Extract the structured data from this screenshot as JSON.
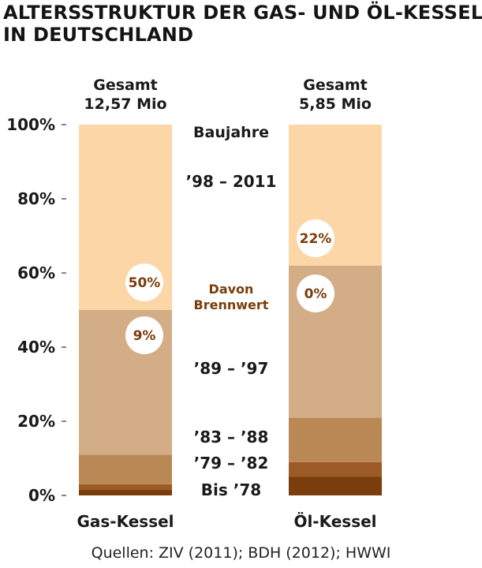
{
  "title": [
    "ALTERSSTRUKTUR DER GAS- UND ÖL-KESSEL",
    "IN DEUTSCHLAND"
  ],
  "source": "Quellen: ZIV (2011); BDH (2012); HWWI",
  "colors": {
    "bis78": "#7a3d0c",
    "79_82": "#9c5a26",
    "83_88": "#b98855",
    "89_97": "#d3ad86",
    "98_2011": "#fcd6a6",
    "circle_text": "#7a3d0c",
    "text": "#1a1a1a"
  },
  "chart_data": {
    "type": "bar",
    "stacked": true,
    "ylim": [
      0,
      100
    ],
    "yticks": [
      0,
      20,
      40,
      60,
      80,
      100
    ],
    "ytick_labels": [
      "0%",
      "20%",
      "40%",
      "60%",
      "80%",
      "100%"
    ],
    "center_heading": "Baujahre",
    "brennwert_label": [
      "Davon",
      "Brennwert"
    ],
    "categories": [
      "Gas-Kessel",
      "Öl-Kessel"
    ],
    "totals": [
      [
        "Gesamt",
        "12,57 Mio"
      ],
      [
        "Gesamt",
        "5,85 Mio"
      ]
    ],
    "series": [
      {
        "name": "Bis ’78",
        "color_key": "bis78",
        "values": [
          1.5,
          5
        ]
      },
      {
        "name": "’79 – ’82",
        "color_key": "79_82",
        "values": [
          1.5,
          4
        ]
      },
      {
        "name": "’83 – ’88",
        "color_key": "83_88",
        "values": [
          8,
          12
        ]
      },
      {
        "name": "’89 – ’97",
        "color_key": "89_97",
        "values": [
          39,
          41
        ]
      },
      {
        "name": "’98 – 2011",
        "color_key": "98_2011",
        "values": [
          50,
          38
        ]
      }
    ],
    "brennwert": [
      {
        "bar": 0,
        "series": "’98 – 2011",
        "label": "50%"
      },
      {
        "bar": 0,
        "series": "’89 – ’97",
        "label": "9%"
      },
      {
        "bar": 1,
        "series": "’98 – 2011",
        "label": "22%"
      },
      {
        "bar": 1,
        "series": "’89 – ’97",
        "label": "0%"
      }
    ]
  }
}
